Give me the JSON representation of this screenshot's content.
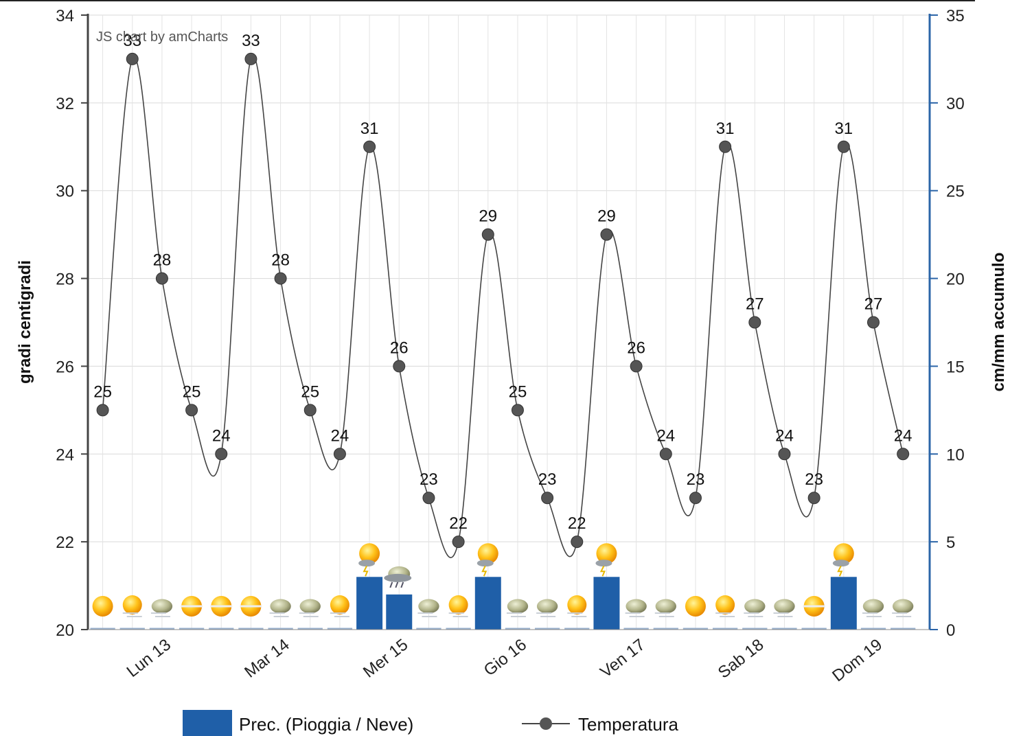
{
  "credit": "JS chart by amCharts",
  "chart_data": {
    "type": "bar+line",
    "y_left": {
      "label": "gradi centigradi",
      "min": 20,
      "max": 34,
      "ticks": [
        20,
        22,
        24,
        26,
        28,
        30,
        32,
        34
      ]
    },
    "y_right": {
      "label": "cm/mm accumulo",
      "min": 0,
      "max": 35,
      "ticks": [
        0,
        5,
        10,
        15,
        20,
        25,
        30,
        35
      ]
    },
    "days": [
      "Lun 13",
      "Mar 14",
      "Mer 15",
      "Gio 16",
      "Ven 17",
      "Sab 18",
      "Dom 19"
    ],
    "series": [
      {
        "name": "Prec. (Pioggia / Neve)",
        "type": "bar",
        "axis": "right",
        "color": "#1f5fa8",
        "values": [
          0,
          0,
          0,
          0,
          0,
          0,
          0,
          0,
          0,
          3,
          2,
          0,
          0,
          3,
          0,
          0,
          0,
          3,
          0,
          0,
          0,
          0,
          0,
          0,
          0,
          3,
          0,
          0
        ]
      },
      {
        "name": "Temperatura",
        "type": "line",
        "axis": "left",
        "color": "#444444",
        "values": [
          25,
          33,
          28,
          25,
          24,
          33,
          28,
          25,
          24,
          31,
          26,
          23,
          22,
          29,
          25,
          23,
          22,
          29,
          26,
          24,
          23,
          31,
          27,
          24,
          23,
          31,
          27,
          24
        ]
      }
    ],
    "weather_icons": [
      "sun",
      "sun-cloud",
      "cloud-sun",
      "sun-haze",
      "sun-haze",
      "sun-haze",
      "cloud-sun",
      "cloud-sun",
      "sun-cloud",
      "sun-storm",
      "cloud-storm",
      "cloud-sun",
      "sun-cloud",
      "sun-storm",
      "cloud-sun",
      "cloud-sun",
      "sun-cloud",
      "sun-storm",
      "cloud-sun",
      "cloud-sun",
      "sun",
      "sun-cloud",
      "cloud-sun",
      "cloud-sun",
      "sun-haze",
      "sun-storm",
      "cloud-sun",
      "cloud-sun"
    ],
    "colors": {
      "bar": "#1f5fa8",
      "line": "#444444",
      "right_axis": "#2b65a8",
      "grid": "#d9d9d9"
    }
  },
  "legend": {
    "precip_label": "Prec. (Pioggia / Neve)",
    "temp_label": "Temperatura"
  }
}
